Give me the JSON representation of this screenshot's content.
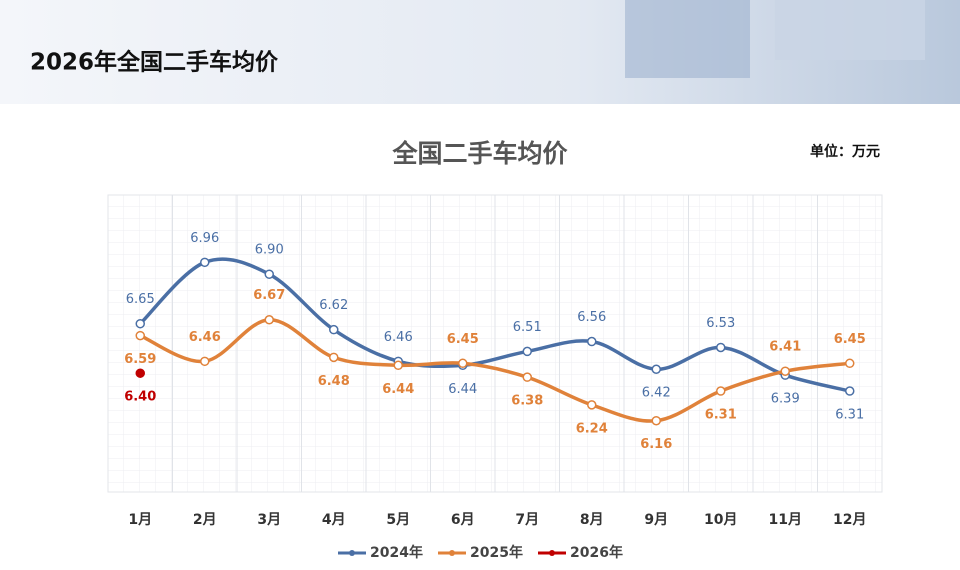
{
  "header": {
    "title": "2026年全国二手车均价"
  },
  "chart_data": {
    "type": "line",
    "title": "全国二手车均价",
    "unit_label": "单位：万元",
    "categories": [
      "1月",
      "2月",
      "3月",
      "4月",
      "5月",
      "6月",
      "7月",
      "8月",
      "9月",
      "10月",
      "11月",
      "12月"
    ],
    "ylim": [
      5.8,
      7.3
    ],
    "series": [
      {
        "name": "2024年",
        "color": "#4a6fa5",
        "values": [
          6.65,
          6.96,
          6.9,
          6.62,
          6.46,
          6.44,
          6.51,
          6.56,
          6.42,
          6.53,
          6.39,
          6.31
        ],
        "value_labels": [
          "6.65",
          "6.96",
          "6.90",
          "6.62",
          "6.46",
          "6.44",
          "6.51",
          "6.56",
          "6.42",
          "6.53",
          "6.39",
          "6.31"
        ]
      },
      {
        "name": "2025年",
        "color": "#e0823a",
        "values": [
          6.59,
          6.46,
          6.67,
          6.48,
          6.44,
          6.45,
          6.38,
          6.24,
          6.16,
          6.31,
          6.41,
          6.45
        ],
        "value_labels": [
          "6.59",
          "6.46",
          "6.67",
          "6.48",
          "6.44",
          "6.45",
          "6.38",
          "6.24",
          "6.16",
          "6.31",
          "6.41",
          "6.45"
        ]
      },
      {
        "name": "2026年",
        "color": "#c00000",
        "values": [
          6.4,
          null,
          null,
          null,
          null,
          null,
          null,
          null,
          null,
          null,
          null,
          null
        ],
        "value_labels": [
          "6.40",
          null,
          null,
          null,
          null,
          null,
          null,
          null,
          null,
          null,
          null,
          null
        ]
      }
    ]
  }
}
